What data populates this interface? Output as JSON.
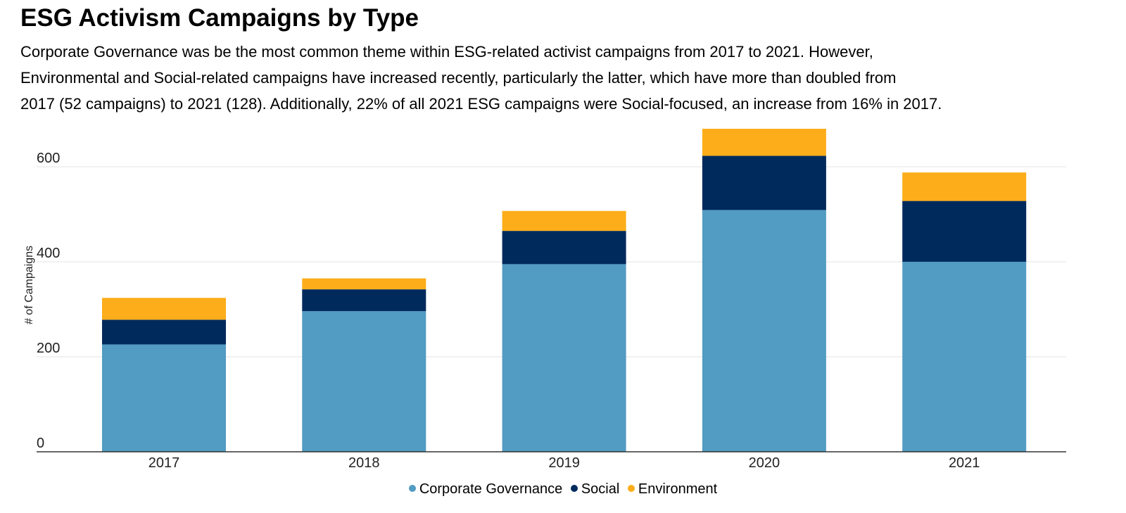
{
  "header": {
    "title": "ESG Activism Campaigns by Type",
    "subtitle_lines": [
      "Corporate Governance was be the most common theme within ESG-related activist campaigns from 2017 to 2021. However,",
      "Environmental and Social-related campaigns have increased recently, particularly the latter, which have more than doubled from",
      "2017 (52 campaigns) to 2021 (128). Additionally, 22% of all 2021 ESG campaigns were Social-focused, an increase from 16% in 2017."
    ]
  },
  "chart_data": {
    "type": "bar",
    "stacked": true,
    "title": "ESG Activism Campaigns by Type",
    "xlabel": "",
    "ylabel": "# of Campaigns",
    "categories": [
      "2017",
      "2018",
      "2019",
      "2020",
      "2021"
    ],
    "series": [
      {
        "name": "Corporate Governance",
        "color": "#529bc2",
        "values": [
          226,
          296,
          395,
          509,
          400
        ]
      },
      {
        "name": "Social",
        "color": "#002a5c",
        "values": [
          52,
          46,
          70,
          114,
          128
        ]
      },
      {
        "name": "Environment",
        "color": "#fcad19",
        "values": [
          46,
          23,
          42,
          57,
          60
        ]
      }
    ],
    "yticks": [
      0,
      200,
      400,
      600
    ],
    "ylim": [
      0,
      680
    ],
    "grid": true,
    "legend_position": "bottom-center"
  }
}
